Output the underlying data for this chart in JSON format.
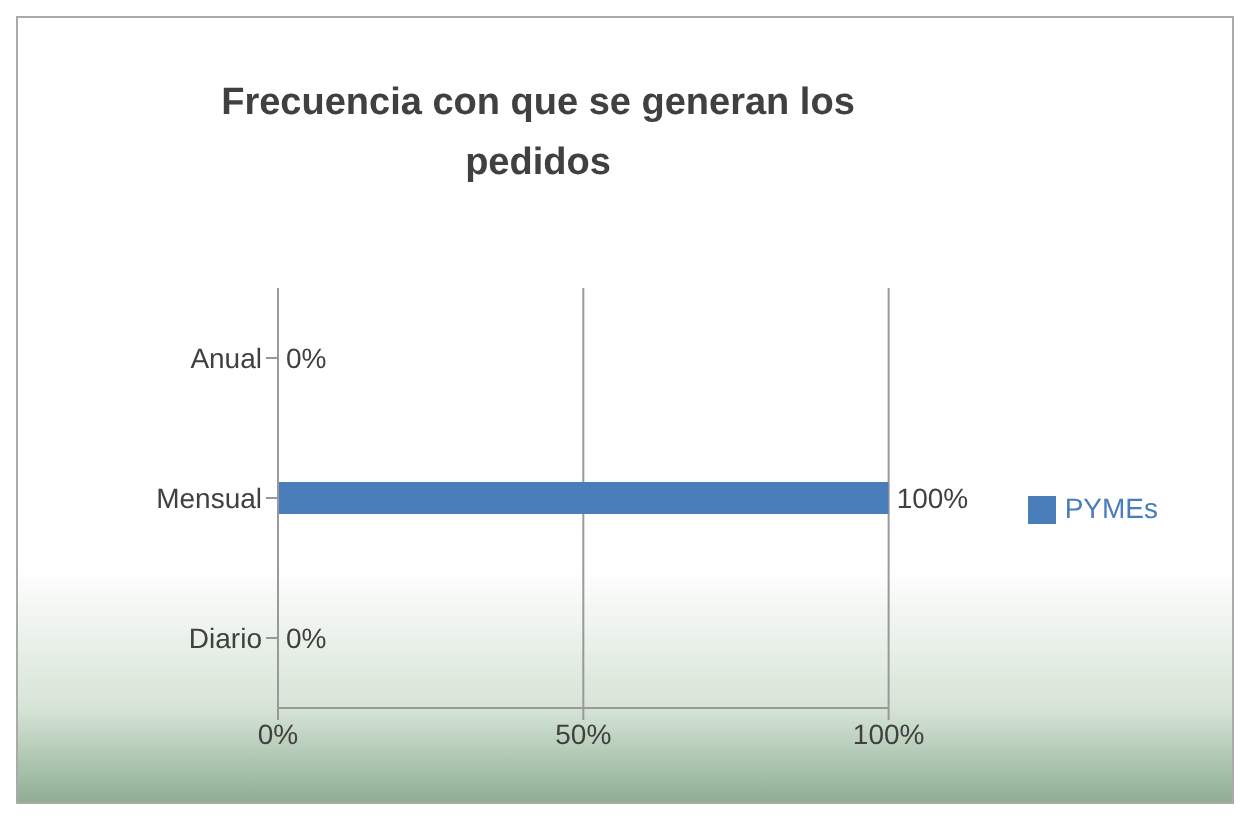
{
  "chart_data": {
    "type": "bar",
    "orientation": "horizontal",
    "title": "Frecuencia con que se generan los pedidos",
    "categories": [
      "Anual",
      "Mensual",
      "Diario"
    ],
    "series": [
      {
        "name": "PYMEs",
        "color": "#4a7ebb",
        "values": [
          0,
          100,
          0
        ],
        "value_labels": [
          "0%",
          "100%",
          "0%"
        ]
      }
    ],
    "xlim": [
      0,
      100
    ],
    "xticks": [
      {
        "value": 0,
        "label": "0%"
      },
      {
        "value": 50,
        "label": "50%"
      },
      {
        "value": 100,
        "label": "100%"
      }
    ],
    "grid": "x",
    "legend": "right"
  }
}
